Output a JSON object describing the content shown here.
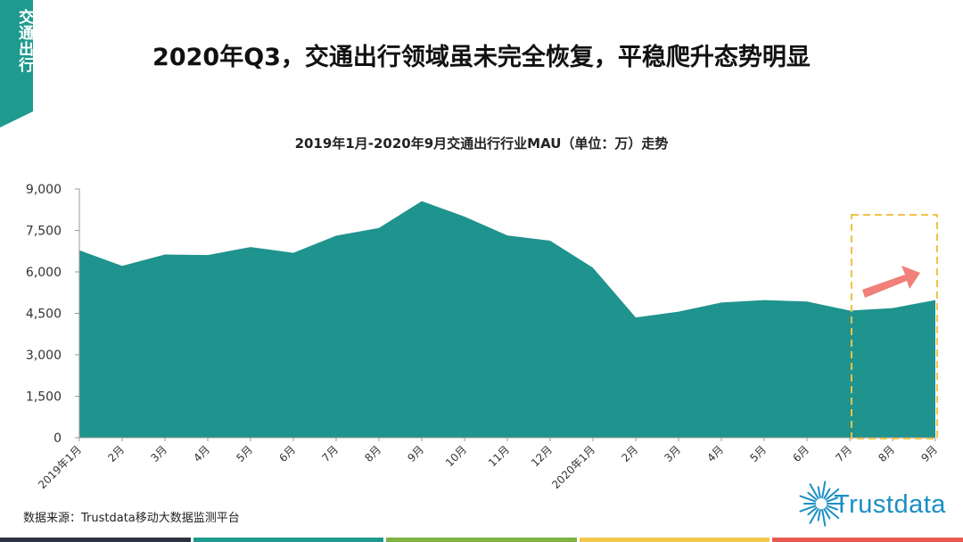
{
  "side_tag": "交通出行",
  "page_title": "2020年Q3，交通出行领域虽未完全恢复，平稳爬升态势明显",
  "chart_data": {
    "type": "area",
    "title": "2019年1月-2020年9月交通出行行业MAU（单位：万）走势",
    "categories": [
      "2019年1月",
      "2月",
      "3月",
      "4月",
      "5月",
      "6月",
      "7月",
      "8月",
      "9月",
      "10月",
      "11月",
      "12月",
      "2020年1月",
      "2月",
      "3月",
      "4月",
      "5月",
      "6月",
      "7月",
      "8月",
      "9月"
    ],
    "series": [
      {
        "values": [
          6780,
          6220,
          6630,
          6610,
          6900,
          6690,
          7310,
          7590,
          8560,
          8000,
          7320,
          7130,
          6150,
          4350,
          4560,
          4890,
          4980,
          4930,
          4600,
          4690,
          4980
        ]
      }
    ],
    "ylim": [
      0,
      9000
    ],
    "yticks": [
      "0",
      "1,500",
      "3,000",
      "4,500",
      "6,000",
      "7,500",
      "9,000"
    ],
    "ytick_values": [
      0,
      1500,
      3000,
      4500,
      6000,
      7500,
      9000
    ],
    "grid": false,
    "highlight_categories": [
      "7月",
      "8月",
      "9月"
    ],
    "colors": {
      "area": "#1f938d",
      "highlight_box": "#f0c24a",
      "arrow": "#f08079"
    }
  },
  "source_note": "数据来源：Trustdata移动大数据监测平台",
  "logo_text": "Trustdata",
  "colors": {
    "tag": "#1f9a8f",
    "bottom_bar": [
      "#2b3440",
      "#1f9a8f",
      "#7cb342",
      "#f2c94c",
      "#e85a4f"
    ]
  }
}
